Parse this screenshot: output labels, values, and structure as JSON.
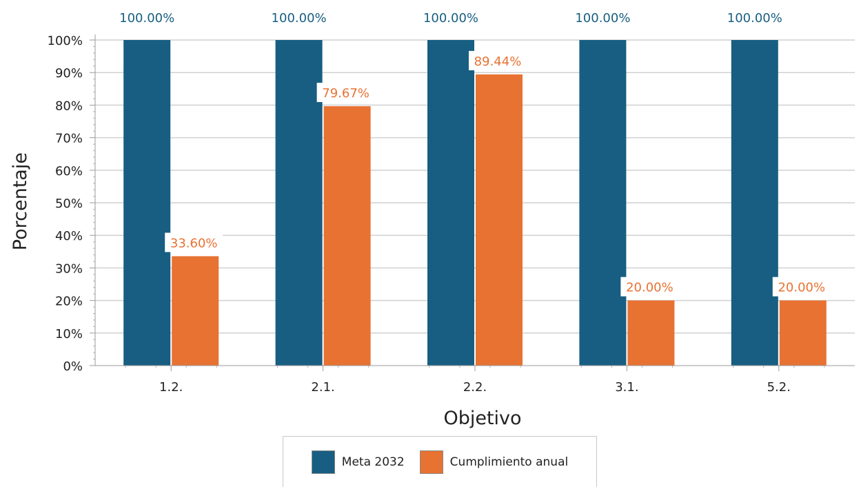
{
  "chart_data": {
    "type": "bar",
    "xlabel": "Objetivo",
    "ylabel": "Porcentaje",
    "categories": [
      "1.2.",
      "2.1.",
      "2.2.",
      "3.1.",
      "5.2."
    ],
    "ylim": [
      0,
      100
    ],
    "yticks": [
      "0%",
      "10%",
      "20%",
      "30%",
      "40%",
      "50%",
      "60%",
      "70%",
      "80%",
      "90%",
      "100%"
    ],
    "grid": true,
    "legend_position": "bottom",
    "series": [
      {
        "name": "Meta 2032",
        "color": "#175e82",
        "values": [
          100,
          100,
          100,
          100,
          100
        ],
        "labels": [
          "100.00%",
          "100.00%",
          "100.00%",
          "100.00%",
          "100.00%"
        ]
      },
      {
        "name": "Cumplimiento anual",
        "color": "#e87232",
        "values": [
          33.6,
          79.67,
          89.44,
          20,
          20
        ],
        "labels": [
          "33.60%",
          "79.67%",
          "89.44%",
          "20.00%",
          "20.00%"
        ]
      }
    ]
  }
}
